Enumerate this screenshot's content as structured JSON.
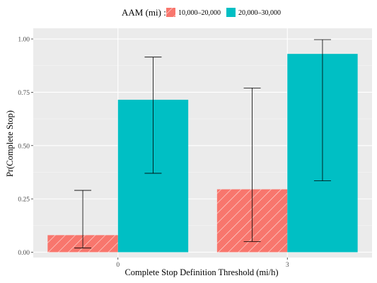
{
  "chart_data": {
    "type": "bar",
    "title": "",
    "xlabel": "Complete Stop Definition Threshold (mi/h)",
    "ylabel": "Pr(Complete Stop)",
    "categories": [
      "0",
      "3"
    ],
    "ylim": [
      -0.025,
      1.05
    ],
    "yticks": [
      "0.00",
      "0.25",
      "0.50",
      "0.75",
      "1.00"
    ],
    "ytick_values": [
      0,
      0.25,
      0.5,
      0.75,
      1.0
    ],
    "grid": true,
    "legend": {
      "title": "AAM (mi) :",
      "position": "top"
    },
    "series": [
      {
        "name": "10,000–20,000",
        "color": "#f8766d",
        "pattern": "diagonal-stripes",
        "values": [
          0.08,
          0.295
        ],
        "error_low": [
          0.02,
          0.05
        ],
        "error_high": [
          0.29,
          0.77
        ]
      },
      {
        "name": "20,000–30,000",
        "color": "#00bfc4",
        "pattern": "solid",
        "values": [
          0.715,
          0.93
        ],
        "error_low": [
          0.37,
          0.335
        ],
        "error_high": [
          0.915,
          0.997
        ]
      }
    ]
  },
  "colors": {
    "panel_background": "#ebebeb",
    "grid_major": "#ffffff",
    "axis_text": "#4d4d4d",
    "error_bar": "#000000"
  }
}
